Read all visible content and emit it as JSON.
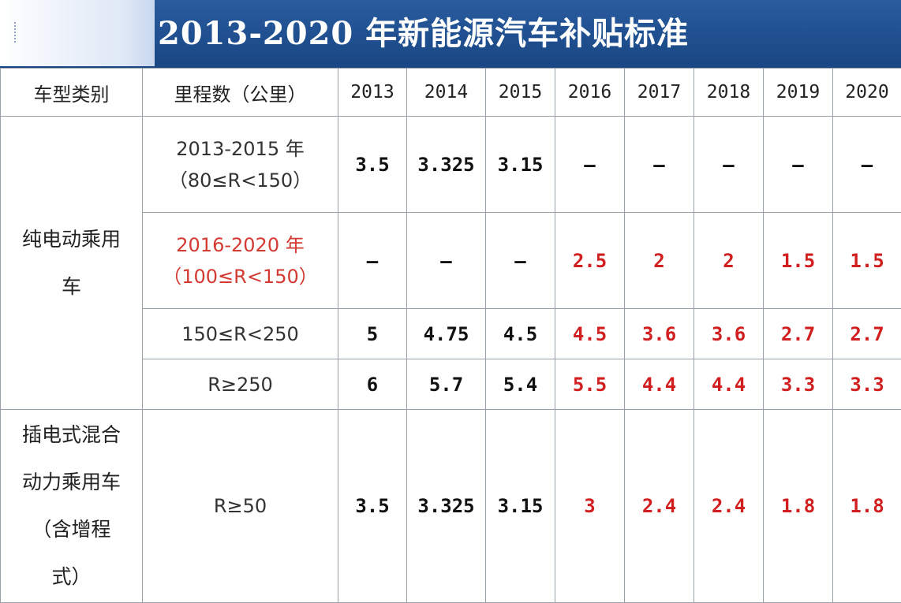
{
  "title": "2013-2020 年新能源汽车补贴标准",
  "headers": {
    "type": "车型类别",
    "range": "里程数（公里）",
    "years": [
      "2013",
      "2014",
      "2015",
      "2016",
      "2017",
      "2018",
      "2019",
      "2020"
    ]
  },
  "groups": {
    "bev": {
      "label_line1": "纯电动乘用",
      "label_line2": "车"
    },
    "phev": {
      "label_line1": "插电式混合",
      "label_line2": "动力乘用车",
      "label_line3": "（含增程",
      "label_line4": "式）"
    }
  },
  "rows": [
    {
      "range_line1": "2013-2015 年",
      "range_line2": "（80≤R<150）",
      "values": [
        "3.5",
        "3.325",
        "3.15",
        "—",
        "—",
        "—",
        "—",
        "—"
      ]
    },
    {
      "range_line1": "2016-2020 年",
      "range_line2": "（100≤R<150）",
      "values": [
        "—",
        "—",
        "—",
        "2.5",
        "2",
        "2",
        "1.5",
        "1.5"
      ]
    },
    {
      "range_line1": "150≤R<250",
      "values": [
        "5",
        "4.75",
        "4.5",
        "4.5",
        "3.6",
        "3.6",
        "2.7",
        "2.7"
      ]
    },
    {
      "range_line1": "R≥250",
      "values": [
        "6",
        "5.7",
        "5.4",
        "5.5",
        "4.4",
        "4.4",
        "3.3",
        "3.3"
      ]
    },
    {
      "range_line1": "R≥50",
      "values": [
        "3.5",
        "3.325",
        "3.15",
        "3",
        "2.4",
        "2.4",
        "1.8",
        "1.8"
      ]
    }
  ],
  "colors": {
    "banner": "#1f4f8f",
    "highlight_red": "#d11f1f",
    "grid": "#9aa0a8"
  }
}
